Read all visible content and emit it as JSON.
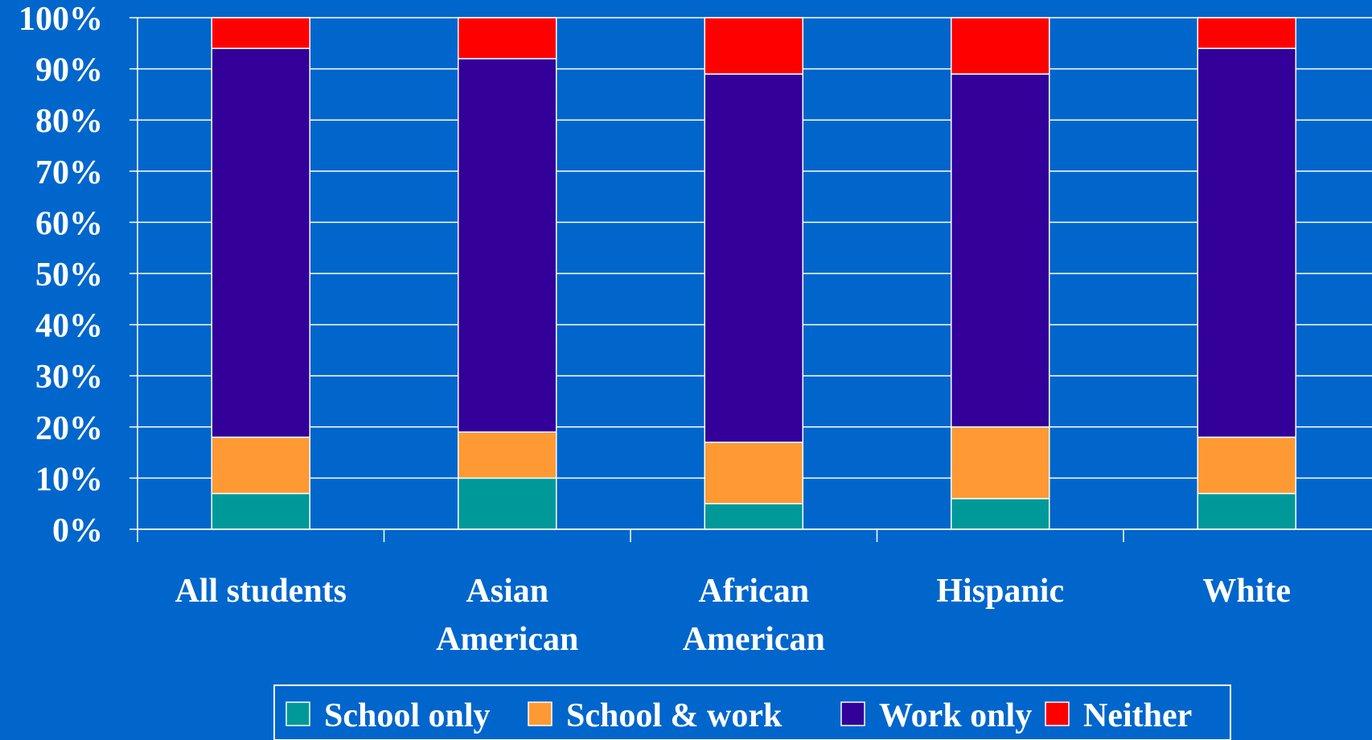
{
  "chart_data": {
    "type": "bar",
    "stacked": true,
    "categories": [
      [
        "All students"
      ],
      [
        "Asian",
        "American"
      ],
      [
        "African",
        "American"
      ],
      [
        "Hispanic"
      ],
      [
        "White"
      ]
    ],
    "series": [
      {
        "name": "School only",
        "color": "#009999",
        "values": [
          7,
          10,
          5,
          6,
          7
        ]
      },
      {
        "name": "School & work",
        "color": "#FF9933",
        "values": [
          11,
          9,
          12,
          14,
          11
        ]
      },
      {
        "name": "Work only",
        "color": "#330099",
        "values": [
          76,
          73,
          72,
          69,
          76
        ]
      },
      {
        "name": "Neither",
        "color": "#FF0000",
        "values": [
          6,
          8,
          11,
          11,
          6
        ]
      }
    ],
    "ylim": [
      0,
      100
    ],
    "yticks": [
      "0%",
      "10%",
      "20%",
      "30%",
      "40%",
      "50%",
      "60%",
      "70%",
      "80%",
      "90%",
      "100%"
    ],
    "grid": true,
    "legend_position": "bottom",
    "background_color": "#0066CC",
    "grid_color": "#FFFFFF"
  }
}
